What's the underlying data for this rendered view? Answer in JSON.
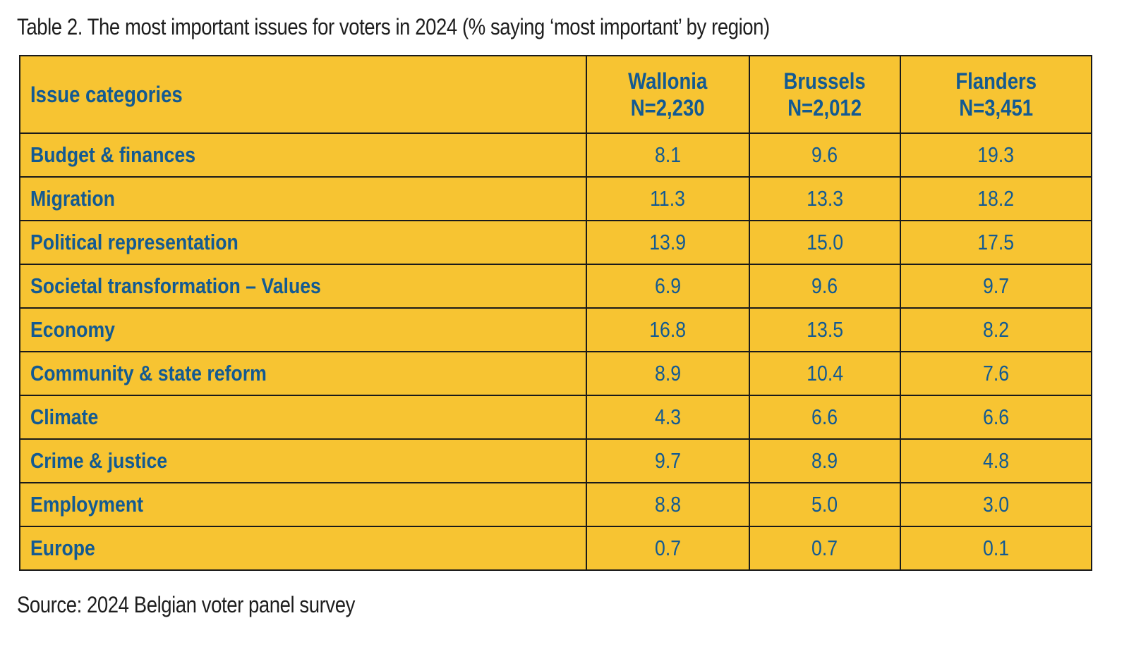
{
  "caption": "Table 2. The most important issues for voters in 2024 (% saying ‘most important’ by region)",
  "source": "Source: 2024 Belgian voter panel survey",
  "colors": {
    "table_fill": "#f7c432",
    "header_text": "#135a92",
    "border": "#1a1a1a"
  },
  "table": {
    "header": {
      "label": "Issue categories",
      "columns": [
        {
          "region": "Wallonia",
          "n": "N=2,230"
        },
        {
          "region": "Brussels",
          "n": "N=2,012"
        },
        {
          "region": "Flanders",
          "n": "N=3,451"
        }
      ]
    },
    "rows": [
      {
        "label": "Budget & finances",
        "values": [
          "8.1",
          "9.6",
          "19.3"
        ]
      },
      {
        "label": "Migration",
        "values": [
          "11.3",
          "13.3",
          "18.2"
        ]
      },
      {
        "label": "Political representation",
        "values": [
          "13.9",
          "15.0",
          "17.5"
        ]
      },
      {
        "label": "Societal transformation – Values",
        "values": [
          "6.9",
          "9.6",
          "9.7"
        ]
      },
      {
        "label": "Economy",
        "values": [
          "16.8",
          "13.5",
          "8.2"
        ]
      },
      {
        "label": "Community & state reform",
        "values": [
          "8.9",
          "10.4",
          "7.6"
        ]
      },
      {
        "label": "Climate",
        "values": [
          "4.3",
          "6.6",
          "6.6"
        ]
      },
      {
        "label": "Crime & justice",
        "values": [
          "9.7",
          "8.9",
          "4.8"
        ]
      },
      {
        "label": "Employment",
        "values": [
          "8.8",
          "5.0",
          "3.0"
        ]
      },
      {
        "label": "Europe",
        "values": [
          "0.7",
          "0.7",
          "0.1"
        ]
      }
    ]
  }
}
